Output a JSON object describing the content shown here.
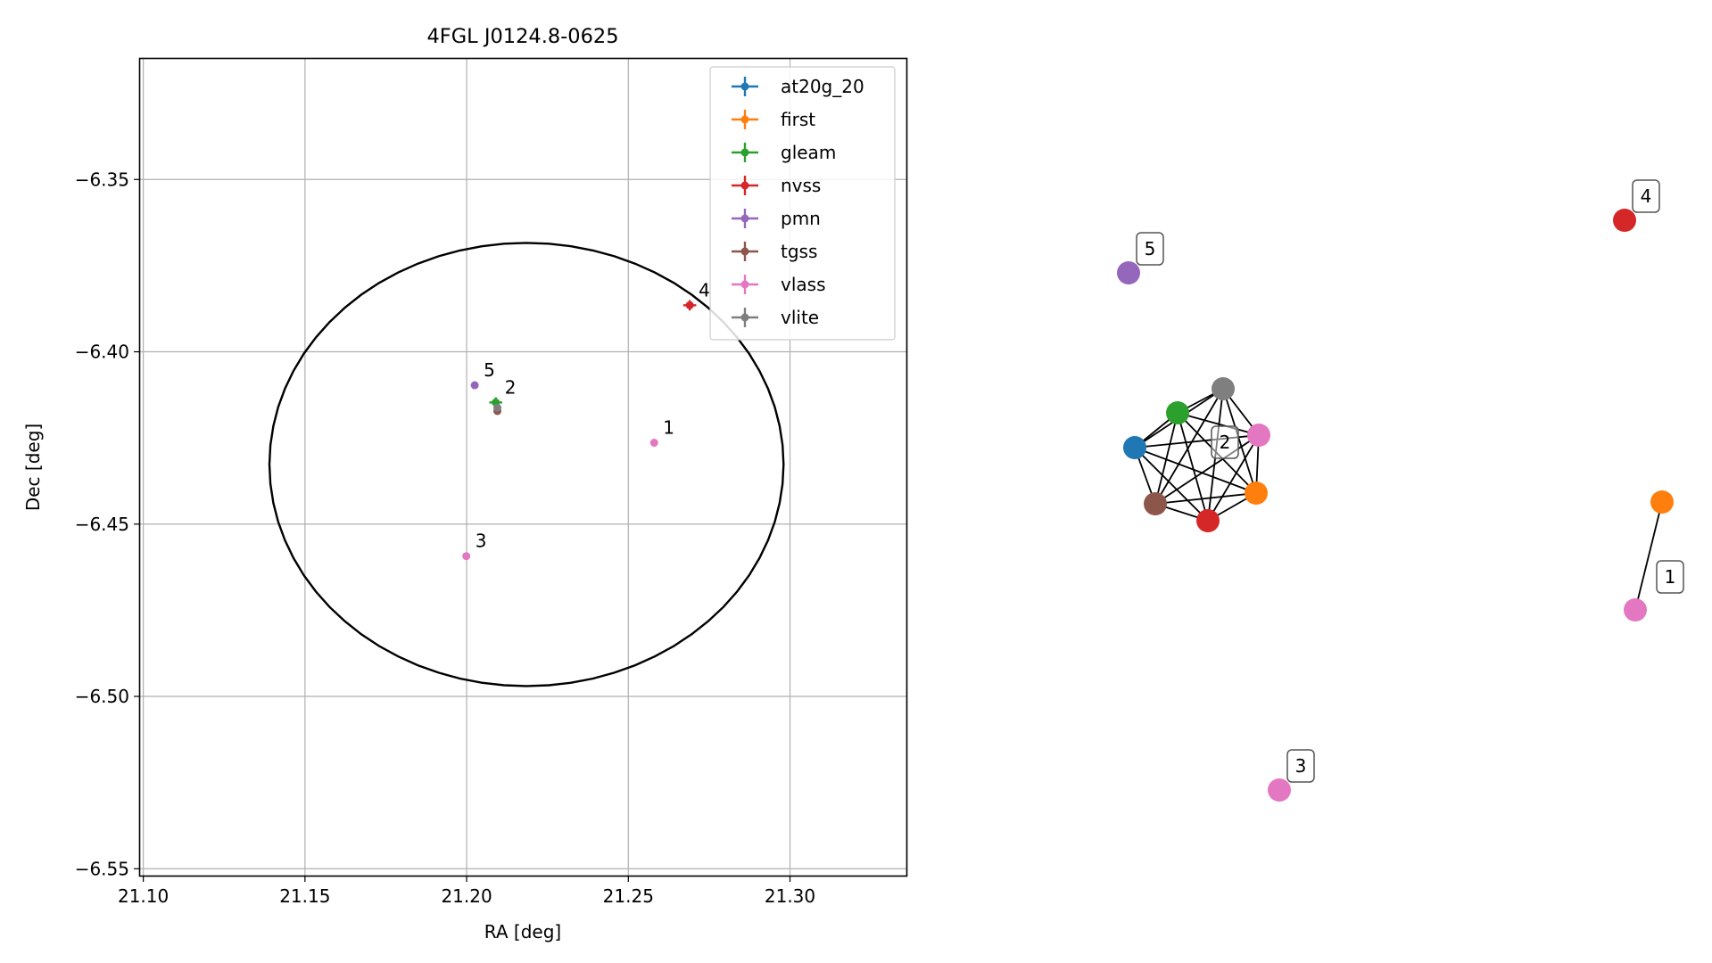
{
  "chart_data": [
    {
      "type": "scatter",
      "title": "4FGL J0124.8-0625",
      "xlabel": "RA [deg]",
      "ylabel": "Dec [deg]",
      "xlim": [
        21.099,
        21.336
      ],
      "ylim": [
        -6.552,
        -6.315
      ],
      "xticks": [
        21.1,
        21.15,
        21.2,
        21.25,
        21.3
      ],
      "xtick_labels": [
        "21.10",
        "21.15",
        "21.20",
        "21.25",
        "21.30"
      ],
      "yticks": [
        -6.35,
        -6.4,
        -6.45,
        -6.5,
        -6.55
      ],
      "ytick_labels": [
        "−6.35",
        "−6.40",
        "−6.45",
        "−6.50",
        "−6.55"
      ],
      "grid": true,
      "legend_position": "top-right",
      "ellipse": {
        "center": [
          21.2185,
          -6.4327
        ],
        "ra_radius": 0.0795,
        "dec_radius": 0.0643,
        "color": "#000000"
      },
      "series": [
        {
          "name": "at20g_20",
          "color": "#1f77b4",
          "points": []
        },
        {
          "name": "first",
          "color": "#ff7f0e",
          "points": []
        },
        {
          "name": "gleam",
          "color": "#2ca02c",
          "points": [
            {
              "x": 21.209,
              "y": -6.4147,
              "xerr": 0.002,
              "yerr": 0.0015
            }
          ]
        },
        {
          "name": "nvss",
          "color": "#d62728",
          "points": [
            {
              "x": 21.269,
              "y": -6.3865,
              "xerr": 0.002,
              "yerr": 0.0015
            }
          ]
        },
        {
          "name": "pmn",
          "color": "#9467bd",
          "points": [
            {
              "x": 21.2025,
              "y": -6.4097,
              "xerr": 0,
              "yerr": 0
            }
          ]
        },
        {
          "name": "tgss",
          "color": "#8c564b",
          "points": [
            {
              "x": 21.2095,
              "y": -6.4172,
              "xerr": 0,
              "yerr": 0
            }
          ]
        },
        {
          "name": "vlass",
          "color": "#e377c2",
          "points": [
            {
              "x": 21.258,
              "y": -6.4264,
              "xerr": 0,
              "yerr": 0
            },
            {
              "x": 21.1999,
              "y": -6.4593,
              "xerr": 0,
              "yerr": 0
            }
          ]
        },
        {
          "name": "vlite",
          "color": "#7f7f7f",
          "points": [
            {
              "x": 21.2095,
              "y": -6.4162,
              "xerr": 0,
              "yerr": 0
            }
          ]
        }
      ],
      "annotations": [
        {
          "text": "1",
          "x": 21.258,
          "y": -6.4264
        },
        {
          "text": "2",
          "x": 21.209,
          "y": -6.4147
        },
        {
          "text": "3",
          "x": 21.1999,
          "y": -6.4593
        },
        {
          "text": "4",
          "x": 21.269,
          "y": -6.3865
        },
        {
          "text": "5",
          "x": 21.2025,
          "y": -6.4097
        }
      ]
    },
    {
      "type": "network",
      "node_colors": {
        "at20g_20": "#1f77b4",
        "first": "#ff7f0e",
        "gleam": "#2ca02c",
        "nvss": "#d62728",
        "pmn": "#9467bd",
        "tgss": "#8c564b",
        "vlass": "#e377c2",
        "vlite": "#7f7f7f"
      },
      "nodes": [
        {
          "id": "c2_at20g",
          "catalog": "at20g_20",
          "group": "2"
        },
        {
          "id": "c2_gleam",
          "catalog": "gleam",
          "group": "2"
        },
        {
          "id": "c2_vlite",
          "catalog": "vlite",
          "group": "2"
        },
        {
          "id": "c2_vlass",
          "catalog": "vlass",
          "group": "2"
        },
        {
          "id": "c2_first",
          "catalog": "first",
          "group": "2"
        },
        {
          "id": "c2_nvss",
          "catalog": "nvss",
          "group": "2"
        },
        {
          "id": "c2_tgss",
          "catalog": "tgss",
          "group": "2"
        },
        {
          "id": "c5_pmn",
          "catalog": "pmn",
          "group": "5"
        },
        {
          "id": "c4_nvss",
          "catalog": "nvss",
          "group": "4"
        },
        {
          "id": "c1_first",
          "catalog": "first",
          "group": "1"
        },
        {
          "id": "c1_vlass",
          "catalog": "vlass",
          "group": "1"
        },
        {
          "id": "c3_vlass",
          "catalog": "vlass",
          "group": "3"
        }
      ],
      "cliques": [
        [
          "c2_at20g",
          "c2_gleam",
          "c2_vlite",
          "c2_vlass",
          "c2_first",
          "c2_nvss",
          "c2_tgss"
        ],
        [
          "c1_first",
          "c1_vlass"
        ]
      ],
      "labels": [
        {
          "text": "1",
          "group": "1"
        },
        {
          "text": "2",
          "group": "2"
        },
        {
          "text": "3",
          "group": "3"
        },
        {
          "text": "4",
          "group": "4"
        },
        {
          "text": "5",
          "group": "5"
        }
      ]
    }
  ]
}
